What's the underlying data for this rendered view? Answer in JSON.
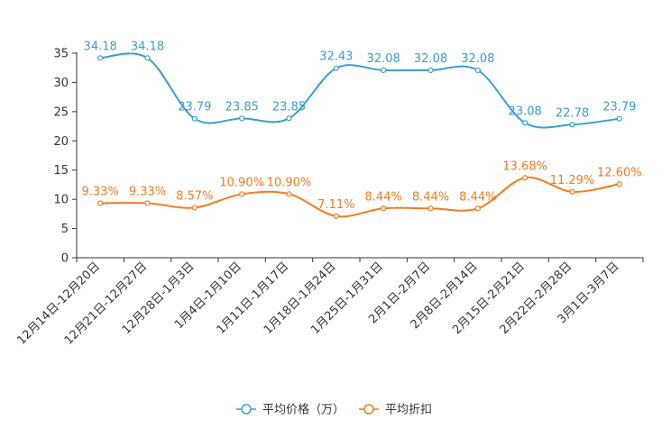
{
  "chart_data": {
    "type": "line",
    "categories": [
      "12月14日-12月20日",
      "12月21日-12月27日",
      "12月28日-1月3日",
      "1月4日-1月10日",
      "1月11日-1月17日",
      "1月18日-1月24日",
      "1月25日-1月31日",
      "2月1日-2月7日",
      "2月8日-2月14日",
      "2月15日-2月21日",
      "2月22日-2月28日",
      "3月1日-3月7日"
    ],
    "series": [
      {
        "name": "平均价格（万）",
        "color": "#3a9dd1",
        "values": [
          34.18,
          34.18,
          23.79,
          23.85,
          23.85,
          32.43,
          32.08,
          32.08,
          32.08,
          23.08,
          22.78,
          23.79
        ],
        "labels": [
          "34.18",
          "34.18",
          "23.79",
          "23.85",
          "23.85",
          "32.43",
          "32.08",
          "32.08",
          "32.08",
          "23.08",
          "22.78",
          "23.79"
        ]
      },
      {
        "name": "平均折扣",
        "color": "#f47a1f",
        "values": [
          9.33,
          9.33,
          8.57,
          10.9,
          10.9,
          7.11,
          8.44,
          8.44,
          8.44,
          13.68,
          11.29,
          12.6
        ],
        "labels": [
          "9.33%",
          "9.33%",
          "8.57%",
          "10.90%",
          "10.90%",
          "7.11%",
          "8.44%",
          "8.44%",
          "8.44%",
          "13.68%",
          "11.29%",
          "12.60%"
        ]
      }
    ],
    "ylim": [
      0,
      35
    ],
    "yticks": [
      "0",
      "5",
      "10",
      "15",
      "20",
      "25",
      "30",
      "35"
    ],
    "ytick_values": [
      0,
      5,
      10,
      15,
      20,
      25,
      30,
      35
    ],
    "legend_position": "bottom-center",
    "grid": false,
    "title": "",
    "xlabel": "",
    "ylabel": ""
  }
}
